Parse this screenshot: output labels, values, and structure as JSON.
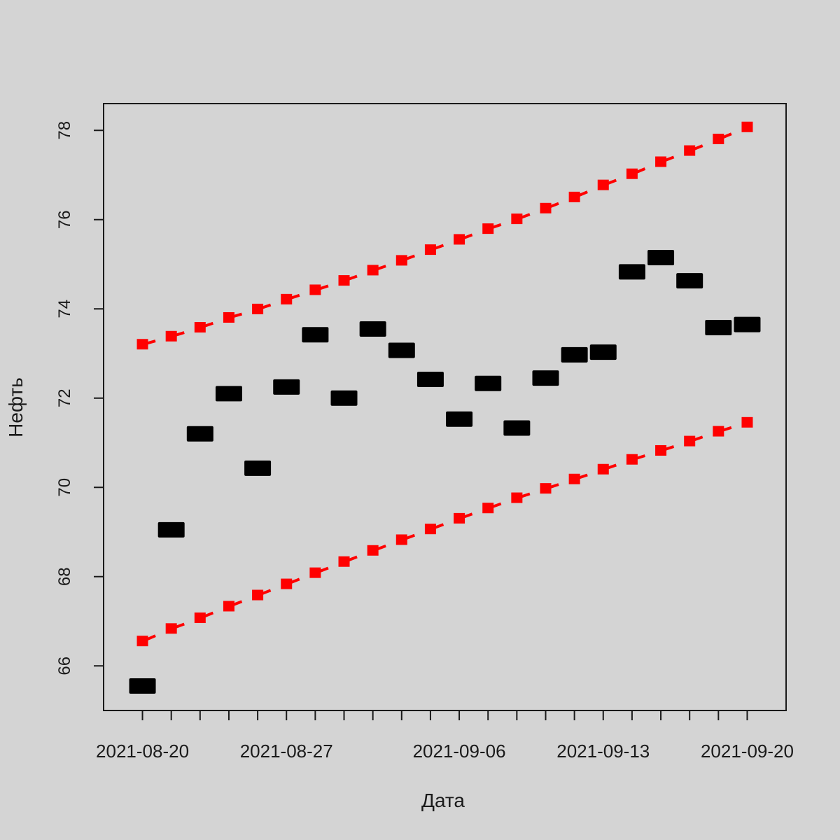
{
  "chart_data": {
    "type": "scatter",
    "xlabel": "Дата",
    "ylabel": "Нефть",
    "x_type": "date",
    "xlim": [
      "2021-08-19",
      "2021-09-21"
    ],
    "ylim": [
      65.0,
      78.6
    ],
    "y_ticks": [
      66,
      68,
      70,
      72,
      74,
      76,
      78
    ],
    "x_tick_labels": [
      "2021-08-20",
      "2021-08-27",
      "2021-09-06",
      "2021-09-13",
      "2021-09-20"
    ],
    "x_dates": [
      "2021-08-20",
      "2021-08-23",
      "2021-08-24",
      "2021-08-25",
      "2021-08-26",
      "2021-08-27",
      "2021-08-30",
      "2021-08-31",
      "2021-09-01",
      "2021-09-02",
      "2021-09-03",
      "2021-09-06",
      "2021-09-07",
      "2021-09-08",
      "2021-09-09",
      "2021-09-10",
      "2021-09-13",
      "2021-09-14",
      "2021-09-15",
      "2021-09-16",
      "2021-09-17",
      "2021-09-20"
    ],
    "grid": false,
    "series": [
      {
        "role": "actual",
        "color": "#000000",
        "marker": "square",
        "values": [
          65.55,
          69.05,
          71.2,
          72.1,
          70.43,
          72.25,
          73.42,
          72.0,
          73.55,
          73.07,
          72.42,
          71.53,
          72.33,
          71.33,
          72.45,
          72.97,
          73.03,
          74.83,
          75.15,
          74.63,
          73.58,
          73.65
        ]
      },
      {
        "role": "upper",
        "color": "#ff0000",
        "marker": "square",
        "values": [
          73.2,
          73.38,
          73.58,
          73.8,
          73.99,
          74.21,
          74.42,
          74.63,
          74.86,
          75.08,
          75.32,
          75.55,
          75.79,
          76.01,
          76.25,
          76.5,
          76.77,
          77.02,
          77.29,
          77.54,
          77.8,
          78.07
        ]
      },
      {
        "role": "lower",
        "color": "#ff0000",
        "marker": "square",
        "values": [
          66.55,
          66.83,
          67.07,
          67.33,
          67.58,
          67.83,
          68.08,
          68.33,
          68.58,
          68.82,
          69.06,
          69.3,
          69.53,
          69.76,
          69.97,
          70.18,
          70.4,
          70.62,
          70.82,
          71.03,
          71.25,
          71.45
        ]
      }
    ]
  }
}
